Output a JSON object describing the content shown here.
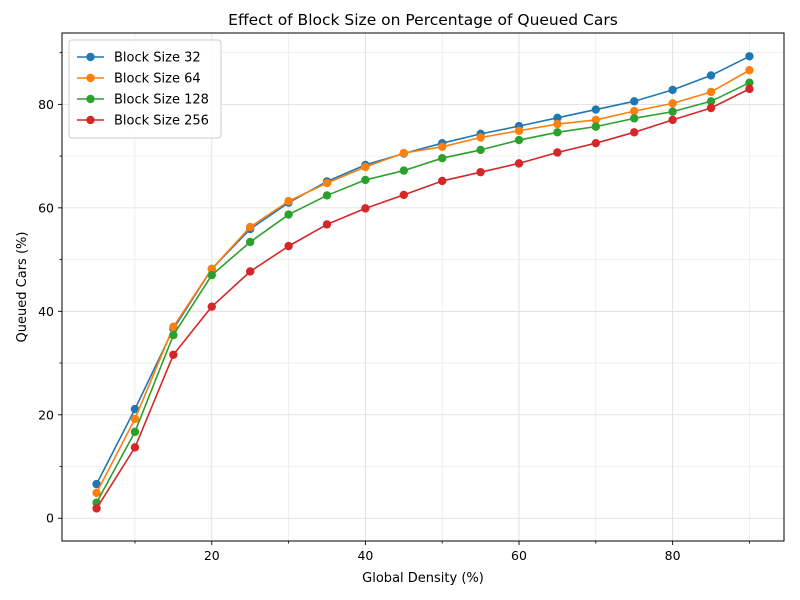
{
  "chart_data": {
    "type": "line",
    "title": "Effect of Block Size on Percentage of Queued Cars",
    "xlabel": "Global Density (%)",
    "ylabel": "Queued Cars (%)",
    "xlim": [
      0.5,
      94.5
    ],
    "ylim": [
      -4.4,
      93.8
    ],
    "x_ticks": [
      20,
      40,
      60,
      80
    ],
    "y_ticks": [
      0,
      20,
      40,
      60,
      80
    ],
    "x_minor_ticks": [
      10,
      30,
      50,
      70,
      90
    ],
    "y_minor_ticks": [
      10,
      30,
      50,
      70,
      90
    ],
    "grid": true,
    "legend_position": "top-left",
    "x": [
      5,
      10,
      15,
      20,
      25,
      30,
      35,
      40,
      45,
      50,
      55,
      60,
      65,
      70,
      75,
      80,
      85,
      90
    ],
    "series": [
      {
        "name": "Block Size 32",
        "color": "#1f77b4",
        "values": [
          6.6,
          21.1,
          36.6,
          48.2,
          55.9,
          61.0,
          65.1,
          68.3,
          70.5,
          72.5,
          74.3,
          75.8,
          77.4,
          79.0,
          80.6,
          82.8,
          85.6,
          89.3
        ]
      },
      {
        "name": "Block Size 64",
        "color": "#ff7f0e",
        "values": [
          4.9,
          19.2,
          37.0,
          48.2,
          56.3,
          61.3,
          64.8,
          67.9,
          70.6,
          71.8,
          73.6,
          74.9,
          76.2,
          77.0,
          78.7,
          80.2,
          82.4,
          86.6
        ]
      },
      {
        "name": "Block Size 128",
        "color": "#2ca02c",
        "values": [
          3.0,
          16.7,
          35.4,
          47.0,
          53.4,
          58.7,
          62.4,
          65.4,
          67.2,
          69.6,
          71.2,
          73.1,
          74.6,
          75.7,
          77.3,
          78.6,
          80.6,
          84.2
        ]
      },
      {
        "name": "Block Size 256",
        "color": "#d62728",
        "values": [
          1.9,
          13.7,
          31.6,
          40.9,
          47.7,
          52.6,
          56.8,
          59.9,
          62.5,
          65.2,
          66.9,
          68.6,
          70.7,
          72.5,
          74.6,
          77.0,
          79.3,
          83.0
        ]
      }
    ]
  }
}
